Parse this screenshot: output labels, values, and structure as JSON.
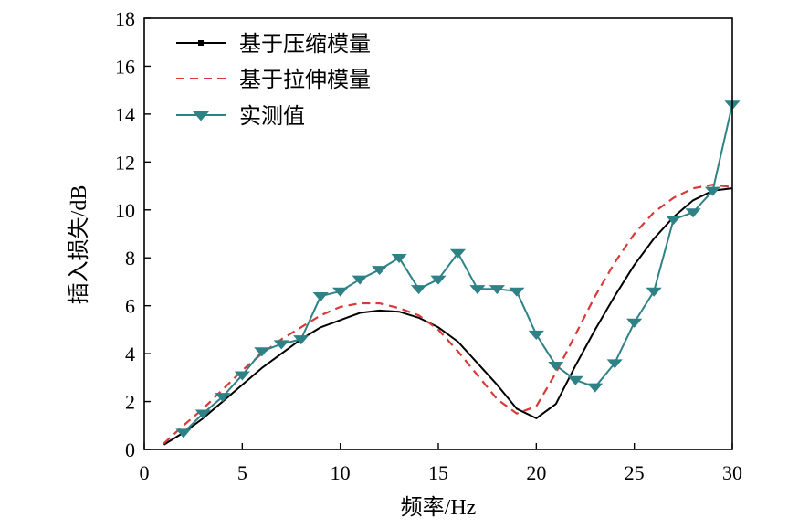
{
  "chart_data": {
    "type": "line",
    "xlabel": "频率/Hz",
    "ylabel": "插入损失/dB",
    "xlim": [
      0,
      30
    ],
    "ylim": [
      0,
      18
    ],
    "x_ticks": [
      0,
      5,
      10,
      15,
      20,
      25,
      30
    ],
    "y_ticks": [
      0,
      2,
      4,
      6,
      8,
      10,
      12,
      14,
      16,
      18
    ],
    "grid": false,
    "legend_position": "top-left",
    "series": [
      {
        "name": "基于压缩模量",
        "color": "#000000",
        "style": "solid",
        "marker": "small-square",
        "x": [
          1,
          2,
          3,
          4,
          5,
          6,
          7,
          8,
          9,
          10,
          11,
          12,
          13,
          14,
          15,
          16,
          17,
          18,
          19,
          20,
          21,
          22,
          23,
          24,
          25,
          26,
          27,
          28,
          29,
          30
        ],
        "y": [
          0.2,
          0.7,
          1.3,
          2.0,
          2.7,
          3.4,
          4.0,
          4.6,
          5.1,
          5.4,
          5.7,
          5.8,
          5.75,
          5.5,
          5.1,
          4.5,
          3.6,
          2.7,
          1.7,
          1.3,
          1.9,
          3.5,
          5.0,
          6.4,
          7.7,
          8.8,
          9.7,
          10.4,
          10.8,
          10.9
        ]
      },
      {
        "name": "基于拉伸模量",
        "color": "#d83a3a",
        "style": "dashed",
        "x": [
          1,
          2,
          3,
          4,
          5,
          6,
          7,
          8,
          9,
          10,
          11,
          12,
          13,
          14,
          15,
          16,
          17,
          18,
          19,
          20,
          21,
          22,
          23,
          24,
          25,
          26,
          27,
          28,
          29,
          30
        ],
        "y": [
          0.25,
          1.0,
          1.7,
          2.5,
          3.3,
          4.0,
          4.6,
          5.1,
          5.6,
          5.95,
          6.1,
          6.1,
          5.9,
          5.6,
          5.0,
          4.1,
          3.1,
          2.1,
          1.5,
          1.8,
          3.2,
          4.8,
          6.4,
          7.8,
          9.0,
          9.9,
          10.5,
          10.9,
          11.05,
          10.95
        ]
      },
      {
        "name": "实测值",
        "color": "#2e8286",
        "style": "solid",
        "marker": "triangle-down",
        "x": [
          2,
          3,
          4,
          5,
          6,
          7,
          8,
          9,
          10,
          11,
          12,
          13,
          14,
          15,
          16,
          17,
          18,
          19,
          20,
          21,
          22,
          23,
          24,
          25,
          26,
          27,
          28,
          29,
          30
        ],
        "y": [
          0.7,
          1.5,
          2.2,
          3.1,
          4.1,
          4.4,
          4.6,
          6.4,
          6.6,
          7.1,
          7.5,
          8.0,
          6.7,
          7.1,
          8.2,
          6.7,
          6.7,
          6.6,
          4.8,
          3.5,
          2.9,
          2.6,
          3.6,
          5.3,
          6.6,
          9.6,
          9.9,
          10.8,
          14.4
        ]
      }
    ]
  }
}
